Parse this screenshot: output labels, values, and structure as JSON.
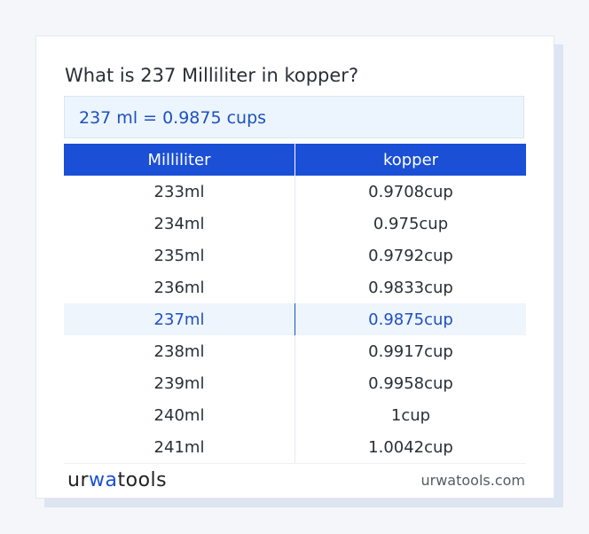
{
  "heading": "What is 237 Milliliter in kopper?",
  "result": "237 ml = 0.9875 cups",
  "table": {
    "headers": [
      "Milliliter",
      "kopper"
    ],
    "rows": [
      {
        "ml": "233ml",
        "cups": "0.9708cup"
      },
      {
        "ml": "234ml",
        "cups": "0.975cup"
      },
      {
        "ml": "235ml",
        "cups": "0.9792cup"
      },
      {
        "ml": "236ml",
        "cups": "0.9833cup"
      },
      {
        "ml": "237ml",
        "cups": "0.9875cup"
      },
      {
        "ml": "238ml",
        "cups": "0.9917cup"
      },
      {
        "ml": "239ml",
        "cups": "0.9958cup"
      },
      {
        "ml": "240ml",
        "cups": "1cup"
      },
      {
        "ml": "241ml",
        "cups": "1.0042cup"
      }
    ],
    "highlighted_row": 4
  },
  "footer": {
    "brand_part1": "ur",
    "brand_part2": "wa",
    "brand_part3": "tools",
    "site": "urwatools.com"
  },
  "colors": {
    "header_bg": "#1a4fd6",
    "accent_text": "#1d50c2",
    "highlight_bg": "#eef5fd"
  }
}
